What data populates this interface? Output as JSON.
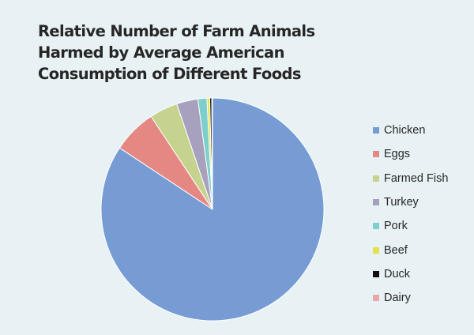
{
  "title_lines": [
    "Relative Number of Farm Animals",
    "Harmed by Average American",
    "Consumption of Different Foods"
  ],
  "chart_data": {
    "type": "pie",
    "title": "Relative Number of Farm Animals Harmed by Average American Consumption of Different Foods",
    "legend_position": "right",
    "slices": [
      {
        "label": "Chicken",
        "value": 84.3,
        "color": "#779cd4"
      },
      {
        "label": "Eggs",
        "value": 6.4,
        "color": "#e58883"
      },
      {
        "label": "Farmed Fish",
        "value": 4.1,
        "color": "#c6d38e"
      },
      {
        "label": "Turkey",
        "value": 3.1,
        "color": "#a8a1be"
      },
      {
        "label": "Pork",
        "value": 1.3,
        "color": "#7dcfcd"
      },
      {
        "label": "Beef",
        "value": 0.4,
        "color": "#e6e04d"
      },
      {
        "label": "Duck",
        "value": 0.3,
        "color": "#111111"
      },
      {
        "label": "Dairy",
        "value": 0.1,
        "color": "#e8a8aa"
      }
    ]
  }
}
